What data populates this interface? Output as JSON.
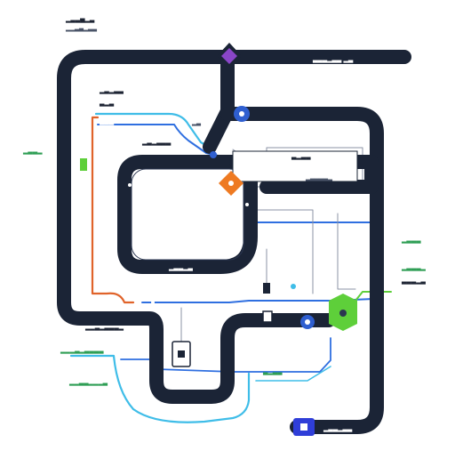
{
  "colors": {
    "track": "#1b2436",
    "track_inner": "#2a3550",
    "blue": "#2f6fe0",
    "cyan": "#3fbde8",
    "orange": "#e0632a",
    "green": "#5ecf3a",
    "purple": "#8a46c8",
    "label_dark": "#1d2433",
    "label_green": "#2e9e54"
  },
  "labels": {
    "top_left_1": "▂▃▃▅▂▃",
    "top_left_2": "▂▂▃▄▂▃▃",
    "top_right": "▃▃▃▂▃▃ ▂▃",
    "left_a": "▂▃▂▃▃",
    "left_b": "▃▂▃",
    "left_c": "▃▂▃",
    "left_green": "▂▃▃▂",
    "mid_top": "▂▃▂▃▃▃",
    "mid_b": "▂▃",
    "mid_c": "▃▂▃▃",
    "mid_d": "▂▃▃▃▃▂",
    "frame_bottom": "▂▃▃▂▃",
    "right_green_1": "▂▃▃▃",
    "right_green_2": "▂▃▃▃▂",
    "right_green_3": "▃▃▃▂▃",
    "bottom_left_1": "▂▂▃▂▃▃▃▂",
    "bottom_left_green_1": "▂▂▂▃▂▃▃▃▃",
    "bottom_left_green_2": "▂▂▃▃▂▂▂▃",
    "mid_bottom_green": "▃▂▃▃",
    "bottom_right": "▂▃▃▂▃▃"
  }
}
